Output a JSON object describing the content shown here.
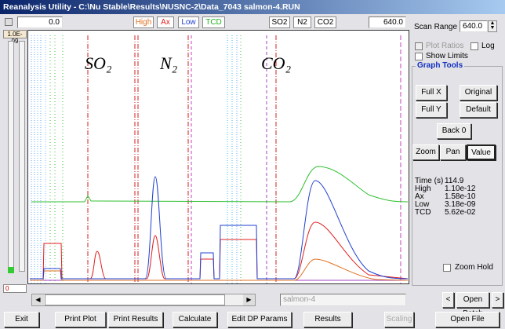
{
  "window_title": "Reanalysis Utility - C:\\Nu Stable\\Results\\NUSNC-2\\Data_7043 salmon-4.RUN",
  "toolbar": {
    "start": "0.0",
    "legend": [
      "High",
      "Ax",
      "Low",
      "TCD"
    ],
    "gases": [
      "SO2",
      "N2",
      "CO2"
    ],
    "end": "640.0"
  },
  "plot": {
    "scale_top": "1.0E-09",
    "scale_bottom": "0",
    "peak_labels": [
      "SO₂",
      "N₂",
      "CO₂"
    ]
  },
  "side_panel": {
    "scan_range_label": "Scan Range",
    "scan_range": "640.0",
    "plot_ratios": "Plot Ratios",
    "log": "Log",
    "show_limits": "Show Limits",
    "graph_tools": {
      "title": "Graph Tools",
      "full_x": "Full X",
      "original": "Original",
      "full_y": "Full Y",
      "default": "Default",
      "back": "Back 0",
      "zoom": "Zoom",
      "pan": "Pan",
      "value": "Value"
    },
    "readout": [
      [
        "Time (s)",
        "114.9"
      ],
      [
        "High",
        "1.10e-12"
      ],
      [
        "Ax",
        "1.58e-10"
      ],
      [
        "Low",
        "3.18e-09"
      ],
      [
        "TCD",
        "5.62e-02"
      ]
    ],
    "zoom_hold": "Zoom Hold"
  },
  "bottom": {
    "file_field": "salmon-4",
    "prev": "<",
    "open_batch": "Open Batch",
    "next": ">",
    "buttons": [
      "Exit",
      "Print Plot",
      "Print Results",
      "Calculate",
      "Edit DP Params",
      "Results",
      "Scaling",
      "Open File"
    ]
  }
}
